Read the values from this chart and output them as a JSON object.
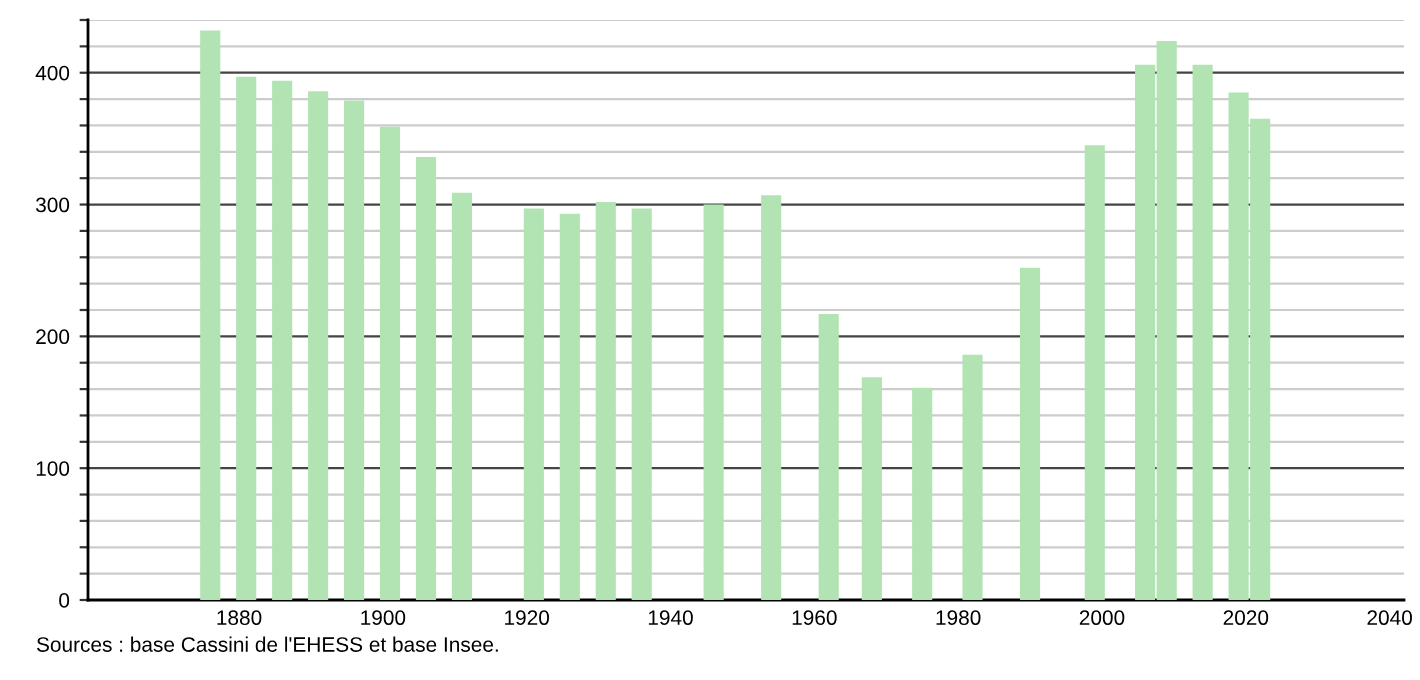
{
  "chart_data": {
    "type": "bar",
    "x": [
      1876,
      1881,
      1886,
      1891,
      1896,
      1901,
      1906,
      1911,
      1921,
      1926,
      1931,
      1936,
      1946,
      1954,
      1962,
      1968,
      1975,
      1982,
      1990,
      1999,
      2006,
      2009,
      2014,
      2019,
      2022
    ],
    "values": [
      432,
      397,
      394,
      386,
      379,
      359,
      336,
      309,
      297,
      293,
      302,
      297,
      300,
      307,
      217,
      169,
      161,
      186,
      252,
      345,
      406,
      424,
      406,
      385,
      365
    ],
    "color": "#b1e3b3",
    "xlim": [
      1859,
      2042
    ],
    "xticks": [
      1880,
      1900,
      1920,
      1940,
      1960,
      1980,
      2000,
      2020,
      2040
    ],
    "ylim": [
      0,
      440
    ],
    "yticks": [
      0,
      {
        "value": 20,
        "label": null
      },
      {
        "value": 40,
        "label": null
      },
      {
        "value": 60,
        "label": null
      },
      {
        "value": 80,
        "label": null
      },
      100,
      {
        "value": 120,
        "label": null
      },
      {
        "value": 140,
        "label": null
      },
      {
        "value": 160,
        "label": null
      },
      {
        "value": 180,
        "label": null
      },
      200,
      {
        "value": 220,
        "label": null
      },
      {
        "value": 240,
        "label": null
      },
      {
        "value": 260,
        "label": null
      },
      {
        "value": 280,
        "label": null
      },
      300,
      {
        "value": 320,
        "label": null
      },
      {
        "value": 340,
        "label": null
      },
      {
        "value": 360,
        "label": null
      },
      {
        "value": 380,
        "label": null
      },
      400,
      {
        "value": 420,
        "label": null
      },
      {
        "value": 440,
        "label": null
      }
    ],
    "grid": "y",
    "annotations": [
      "Sources : base Cassini de l'EHESS et base Insee."
    ]
  }
}
